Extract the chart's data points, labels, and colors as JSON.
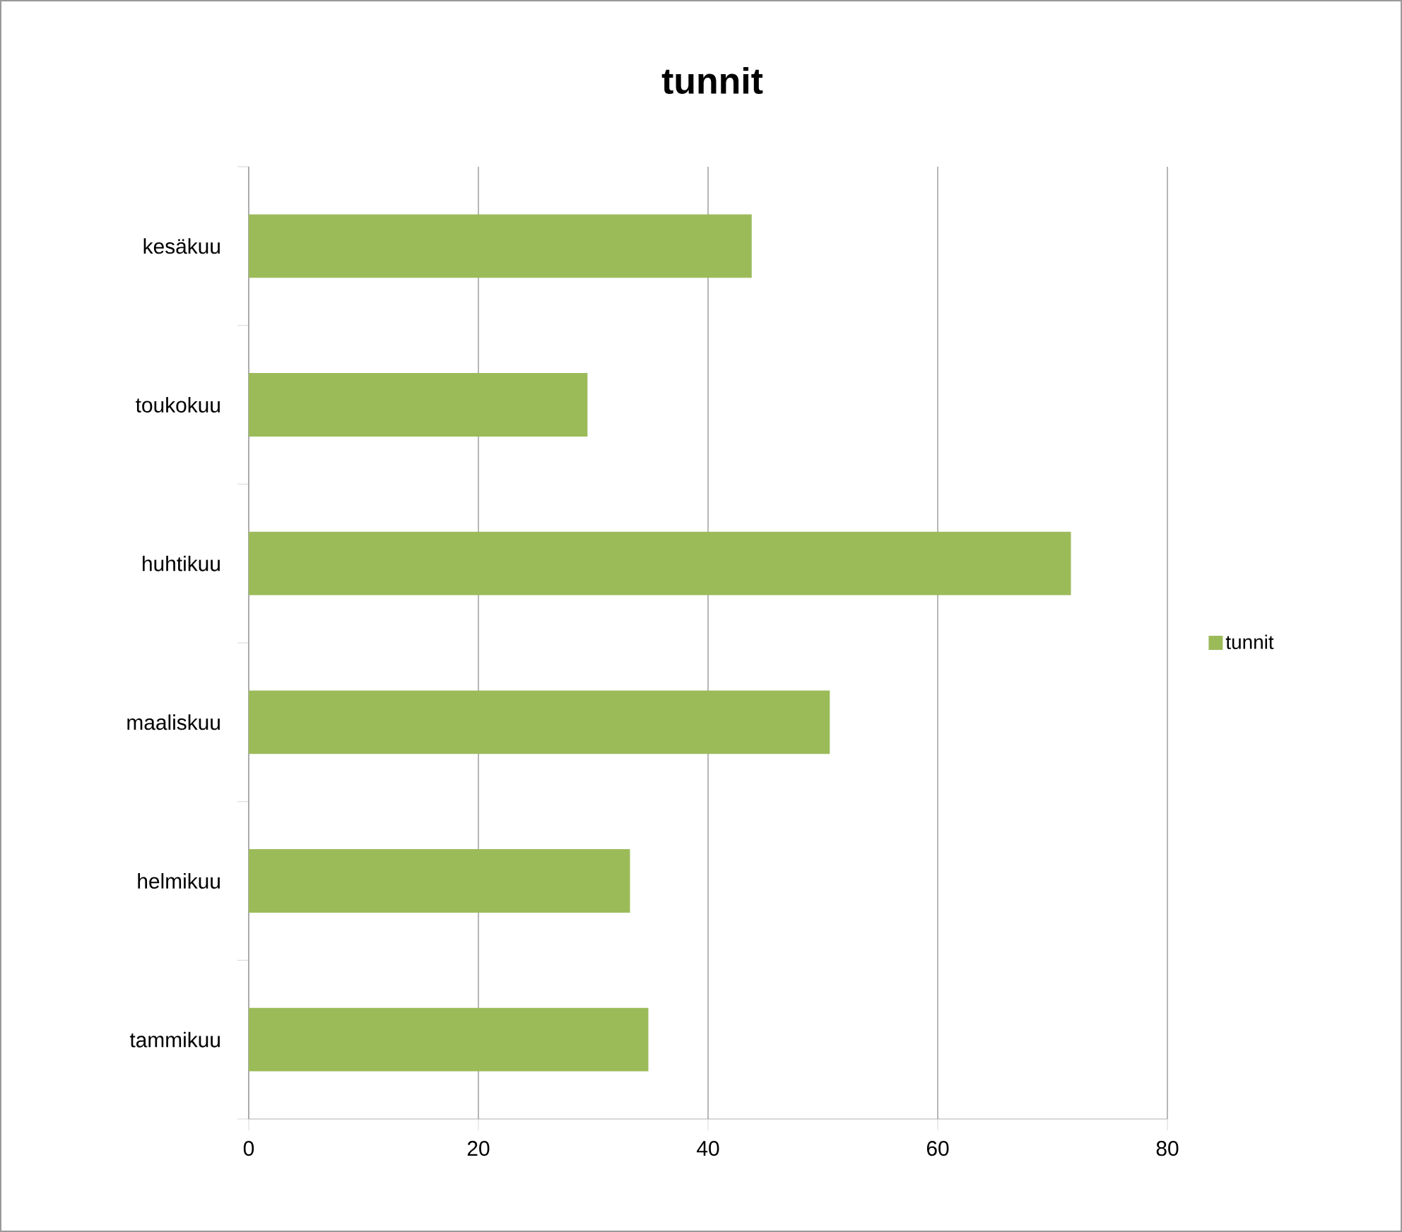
{
  "chart_data": {
    "type": "bar",
    "orientation": "horizontal",
    "title": "tunnit",
    "categories": [
      "kesäkuu",
      "toukokuu",
      "huhtikuu",
      "maaliskuu",
      "helmikuu",
      "tammikuu"
    ],
    "series": [
      {
        "name": "tunnit",
        "color": "#9bbb59",
        "values": [
          43.8,
          29.5,
          71.6,
          50.6,
          33.2,
          34.8
        ]
      }
    ],
    "xlim": [
      0,
      80
    ],
    "xticks": [
      0,
      20,
      40,
      60,
      80
    ],
    "grid": "x",
    "legend": "right"
  }
}
